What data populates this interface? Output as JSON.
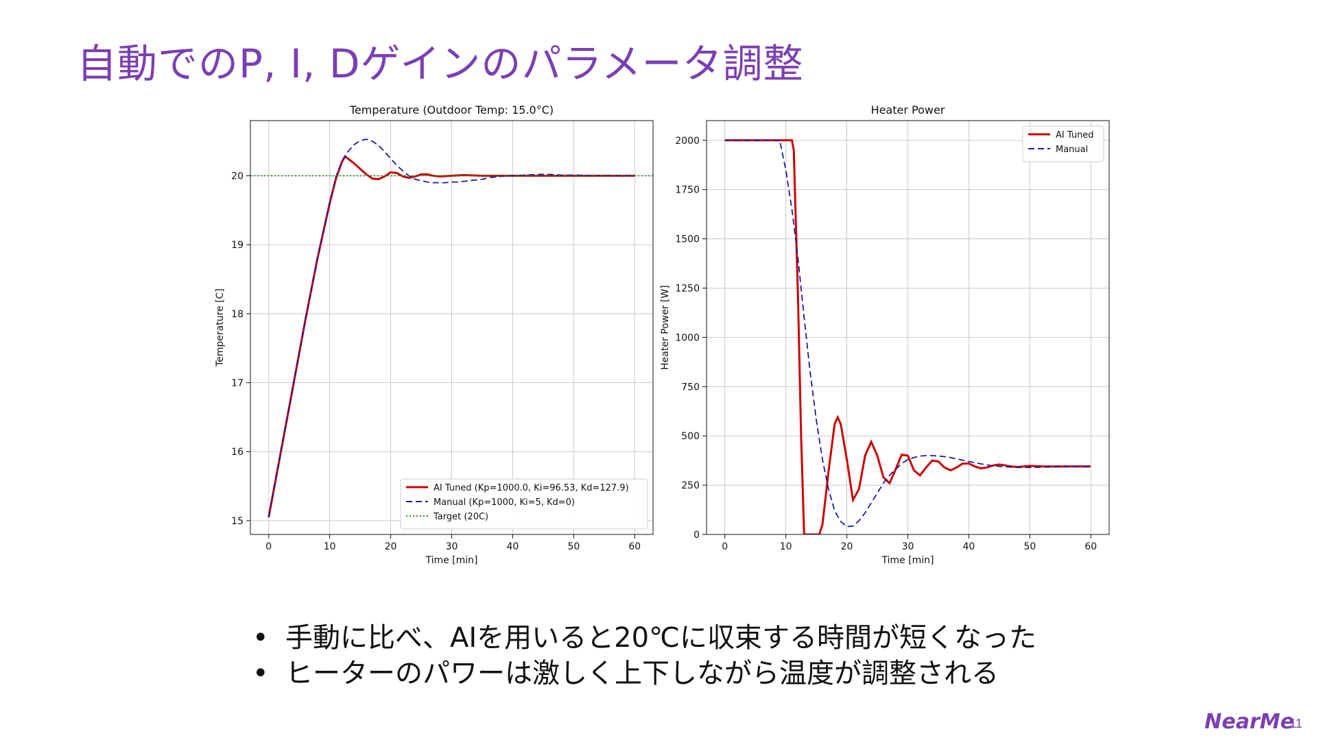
{
  "slide": {
    "title": "自動でのP, I, Dゲインのパラメータ調整",
    "bullets": [
      "手動に比べ、AIを用いると20℃に収束する時間が短くなった",
      "ヒーターのパワーは激しく上下しながら温度が調整される"
    ],
    "bullet_marker": "•",
    "logo_text": "NearMe",
    "page_number": "11",
    "accent_color": "#7b3fb3"
  },
  "chart_data": [
    {
      "type": "line",
      "title": "Temperature (Outdoor Temp: 15.0°C)",
      "xlabel": "Time [min]",
      "ylabel": "Temperature [C]",
      "xlim": [
        -3,
        63
      ],
      "ylim": [
        14.8,
        20.8
      ],
      "xticks": [
        0,
        10,
        20,
        30,
        40,
        50,
        60
      ],
      "yticks": [
        15,
        16,
        17,
        18,
        19,
        20
      ],
      "grid": true,
      "legend_position": "lower-right",
      "series": [
        {
          "name": "AI Tuned (Kp=1000.0, Ki=96.53, Kd=127.9)",
          "color": "#cc0000",
          "style": "solid",
          "x": [
            0,
            2,
            4,
            6,
            8,
            10,
            11,
            12,
            12.5,
            13,
            14,
            15,
            16,
            17,
            18,
            19,
            20,
            21,
            22,
            23,
            24,
            25,
            26,
            27,
            28,
            30,
            32,
            35,
            40,
            45,
            50,
            55,
            60
          ],
          "y": [
            15.05,
            16.0,
            16.95,
            17.9,
            18.8,
            19.6,
            19.95,
            20.2,
            20.28,
            20.25,
            20.18,
            20.1,
            20.02,
            19.96,
            19.95,
            19.99,
            20.05,
            20.04,
            19.99,
            19.97,
            19.99,
            20.02,
            20.02,
            20.0,
            19.99,
            20.0,
            20.01,
            20.0,
            20.0,
            20.0,
            20.0,
            20.0,
            20.0
          ]
        },
        {
          "name": "Manual (Kp=1000, Ki=5, Kd=0)",
          "color": "#1a1aaa",
          "style": "dashed",
          "x": [
            0,
            2,
            4,
            6,
            8,
            10,
            11,
            12,
            13,
            14,
            15,
            16,
            17,
            18,
            19,
            20,
            21,
            22,
            23,
            24,
            25,
            26,
            27,
            28,
            29,
            30,
            31,
            32,
            33,
            34,
            35,
            36,
            38,
            40,
            42,
            44,
            46,
            48,
            50,
            55,
            60
          ],
          "y": [
            15.05,
            16.0,
            16.95,
            17.9,
            18.8,
            19.6,
            19.98,
            20.2,
            20.35,
            20.45,
            20.51,
            20.53,
            20.5,
            20.44,
            20.35,
            20.25,
            20.15,
            20.07,
            20.0,
            19.95,
            19.93,
            19.91,
            19.9,
            19.9,
            19.9,
            19.91,
            19.91,
            19.92,
            19.93,
            19.94,
            19.95,
            19.97,
            19.99,
            20.0,
            20.01,
            20.02,
            20.02,
            20.01,
            20.01,
            20.0,
            20.0
          ]
        },
        {
          "name": "Target (20C)",
          "color": "#228b22",
          "style": "dotted",
          "x": [
            -3,
            63
          ],
          "y": [
            20,
            20
          ]
        }
      ]
    },
    {
      "type": "line",
      "title": "Heater Power",
      "xlabel": "Time [min]",
      "ylabel": "Heater Power [W]",
      "xlim": [
        -3,
        63
      ],
      "ylim": [
        0,
        2100
      ],
      "xticks": [
        0,
        10,
        20,
        30,
        40,
        50,
        60
      ],
      "yticks": [
        0,
        250,
        500,
        750,
        1000,
        1250,
        1500,
        1750,
        2000
      ],
      "grid": true,
      "legend_position": "top-right",
      "series": [
        {
          "name": "AI Tuned",
          "color": "#cc0000",
          "style": "solid",
          "x": [
            0,
            5,
            10,
            11,
            11.3,
            12,
            12.5,
            13,
            14,
            15,
            15.5,
            16,
            17,
            18,
            18.5,
            19,
            20,
            21,
            22,
            23,
            24,
            25,
            26,
            27,
            28,
            29,
            30,
            31,
            32,
            33,
            34,
            35,
            36,
            37,
            38,
            39,
            40,
            41,
            42,
            43,
            44,
            45,
            46,
            47,
            48,
            49,
            50,
            52,
            55,
            58,
            60
          ],
          "y": [
            2000,
            2000,
            2000,
            2000,
            1950,
            1200,
            500,
            0,
            0,
            0,
            0,
            50,
            320,
            560,
            595,
            560,
            380,
            175,
            230,
            400,
            470,
            400,
            290,
            260,
            330,
            405,
            400,
            325,
            300,
            340,
            375,
            370,
            340,
            325,
            340,
            360,
            360,
            345,
            335,
            340,
            350,
            355,
            350,
            345,
            342,
            345,
            348,
            345,
            345,
            345,
            345
          ]
        },
        {
          "name": "Manual",
          "color": "#1a1aaa",
          "style": "dashed",
          "x": [
            0,
            5,
            9,
            10,
            11,
            12,
            13,
            14,
            15,
            16,
            17,
            18,
            19,
            20,
            21,
            22,
            23,
            24,
            25,
            26,
            27,
            28,
            29,
            30,
            31,
            32,
            33,
            34,
            35,
            36,
            37,
            38,
            40,
            42,
            44,
            46,
            48,
            50,
            55,
            60
          ],
          "y": [
            2000,
            2000,
            2000,
            1850,
            1650,
            1400,
            1100,
            820,
            580,
            380,
            230,
            120,
            65,
            40,
            42,
            70,
            110,
            160,
            210,
            260,
            300,
            330,
            360,
            380,
            390,
            398,
            400,
            400,
            398,
            395,
            390,
            383,
            370,
            358,
            348,
            343,
            340,
            340,
            343,
            345
          ]
        }
      ]
    }
  ]
}
